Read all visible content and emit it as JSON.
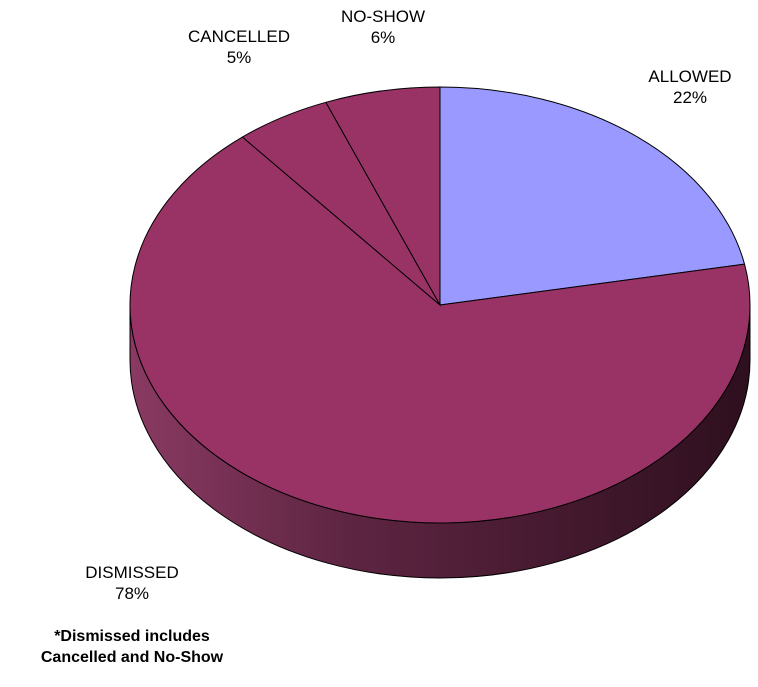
{
  "chart_data": {
    "type": "pie",
    "style": "3d",
    "slices": [
      {
        "label": "ALLOWED",
        "value": 22,
        "display": "22%",
        "color": "#9999ff"
      },
      {
        "label": "DISMISSED",
        "value": 78,
        "display": "78%",
        "color": "#993366"
      },
      {
        "label": "CANCELLED",
        "value": 5,
        "display": "5%",
        "color": "#993366"
      },
      {
        "label": "NO-SHOW",
        "value": 6,
        "display": "6%",
        "color": "#993366"
      }
    ],
    "note": "Cancelled and No-Show slices are shown inside the Dismissed total"
  },
  "footnote": {
    "line1": "*Dismissed includes",
    "line2": "Cancelled and No-Show"
  },
  "colors": {
    "allowed": "#9999ff",
    "dismissed": "#993366",
    "dismissed_side_dark": "#3a1526",
    "dismissed_side_light": "#8a3a62",
    "edge": "#000000"
  }
}
